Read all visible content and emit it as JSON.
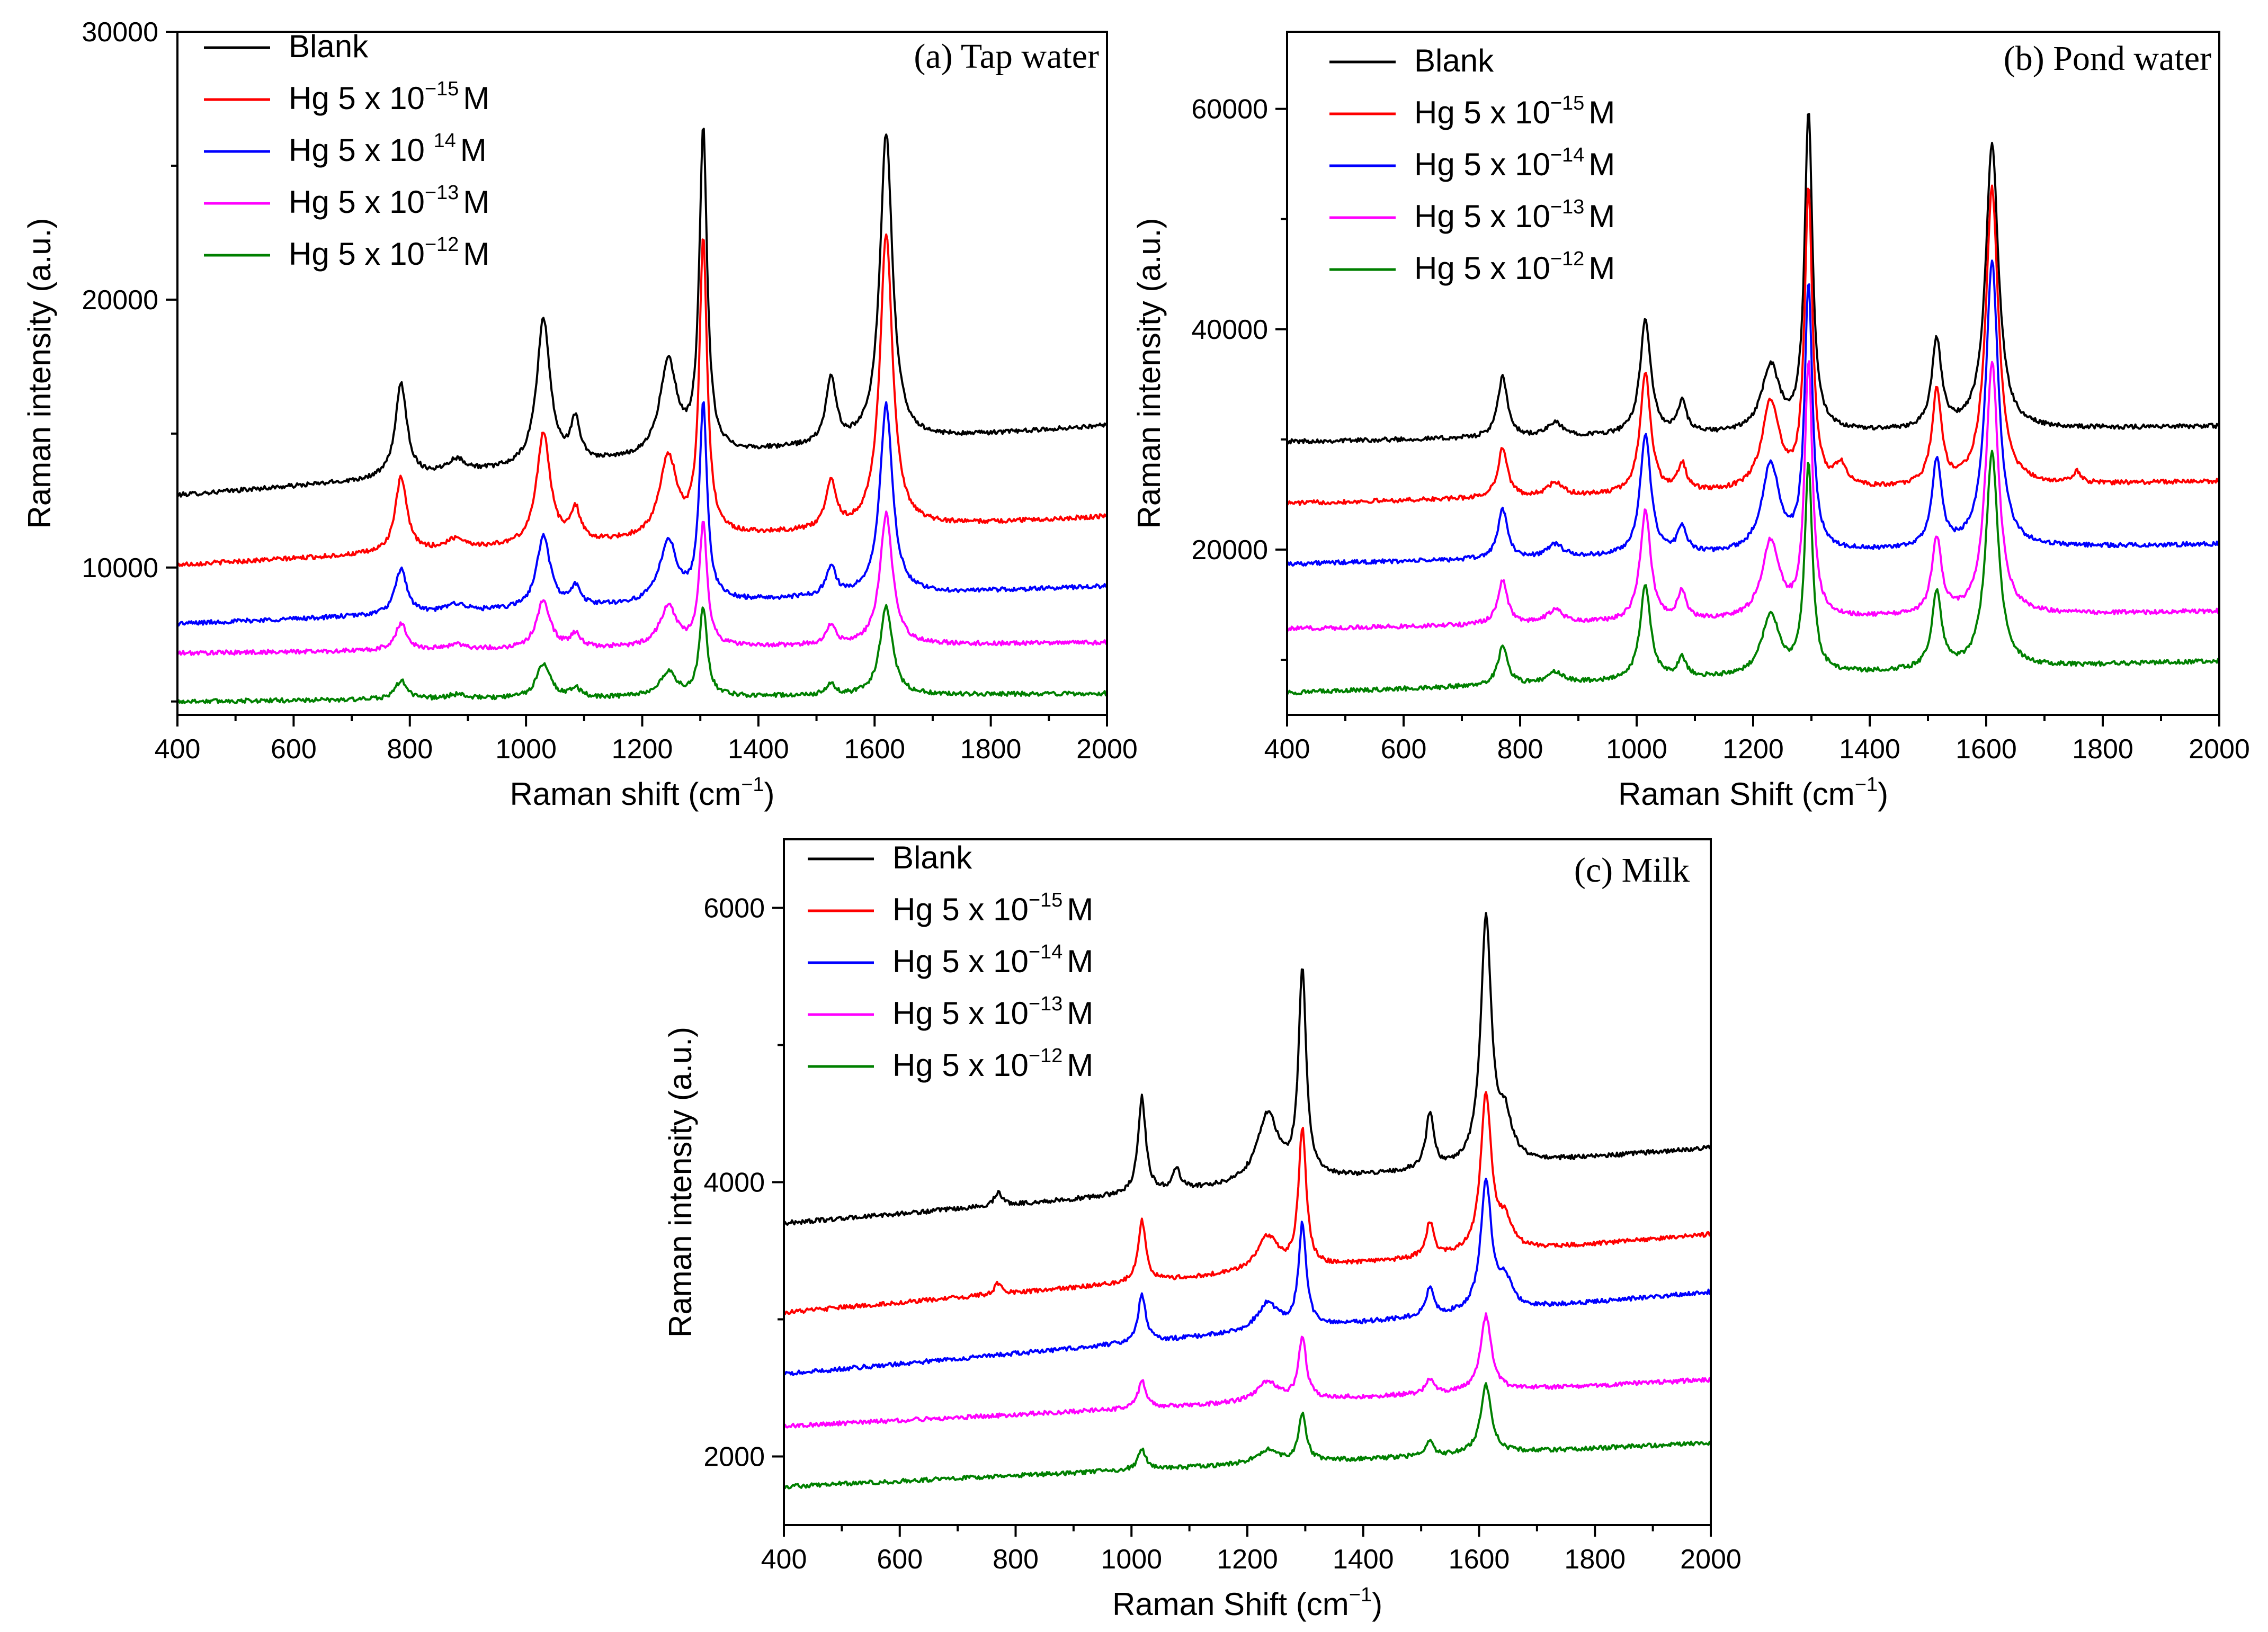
{
  "chart_data": [
    {
      "panel": "a",
      "type": "line",
      "title": "(a) Tap water",
      "xlabel": "Raman shift (cm",
      "xlabel_sup": "−1",
      "xlabel_end": ")",
      "ylabel": "Raman intensity (a.u.)",
      "xlim": [
        400,
        2000
      ],
      "ylim": [
        4500,
        30000
      ],
      "xticks": [
        400,
        600,
        800,
        1000,
        1200,
        1400,
        1600,
        1800,
        2000
      ],
      "yticks": [
        10000,
        20000,
        30000
      ],
      "series": [
        {
          "name": "Blank",
          "base": "Blank",
          "sup": "",
          "tail": "",
          "color": "#000000",
          "base_start": 12700,
          "base_end": 15300,
          "peaks": [
            [
              785,
              3500,
              12
            ],
            [
              880,
              500,
              20
            ],
            [
              1030,
              5500,
              14
            ],
            [
              1085,
              1500,
              10
            ],
            [
              1245,
              3500,
              18
            ],
            [
              1305,
              12000,
              8
            ],
            [
              1525,
              2500,
              10
            ],
            [
              1620,
              11500,
              13
            ]
          ]
        },
        {
          "name": "Hg 5 x 10−15 M",
          "base": "Hg 5 x 10",
          "sup": "−15",
          "tail": "M",
          "color": "#ff0000",
          "base_start": 10100,
          "base_end": 11900,
          "peaks": [
            [
              785,
              2800,
              12
            ],
            [
              880,
              400,
              20
            ],
            [
              1030,
              4200,
              14
            ],
            [
              1085,
              1200,
              10
            ],
            [
              1245,
              3000,
              18
            ],
            [
              1305,
              11000,
              8
            ],
            [
              1525,
              1800,
              10
            ],
            [
              1620,
              11000,
              13
            ]
          ]
        },
        {
          "name": "Hg 5 x 10 14 M",
          "base": "Hg 5 x 10 ",
          "sup": "14",
          "tail": "M",
          "color": "#0000ff",
          "base_start": 7900,
          "base_end": 9300,
          "peaks": [
            [
              785,
              1700,
              12
            ],
            [
              880,
              300,
              20
            ],
            [
              1030,
              2700,
              14
            ],
            [
              1085,
              700,
              10
            ],
            [
              1245,
              2300,
              18
            ],
            [
              1305,
              7300,
              8
            ],
            [
              1525,
              1100,
              10
            ],
            [
              1620,
              7100,
              13
            ]
          ]
        },
        {
          "name": "Hg 5 x 10−13 M",
          "base": "Hg 5 x 10",
          "sup": "−13",
          "tail": "M",
          "color": "#ff00ff",
          "base_start": 6800,
          "base_end": 7200,
          "peaks": [
            [
              785,
              1000,
              12
            ],
            [
              880,
              200,
              20
            ],
            [
              1030,
              1800,
              14
            ],
            [
              1085,
              500,
              10
            ],
            [
              1245,
              1500,
              18
            ],
            [
              1305,
              4600,
              8
            ],
            [
              1525,
              700,
              10
            ],
            [
              1620,
              4900,
              13
            ]
          ]
        },
        {
          "name": "Hg 5 x 10−12 M",
          "base": "Hg 5 x 10",
          "sup": "−12",
          "tail": "M",
          "color": "#008000",
          "base_start": 5000,
          "base_end": 5300,
          "peaks": [
            [
              785,
              700,
              12
            ],
            [
              880,
              150,
              20
            ],
            [
              1030,
              1300,
              14
            ],
            [
              1085,
              350,
              10
            ],
            [
              1245,
              900,
              18
            ],
            [
              1305,
              3300,
              8
            ],
            [
              1525,
              400,
              10
            ],
            [
              1620,
              3300,
              13
            ]
          ]
        }
      ]
    },
    {
      "panel": "b",
      "type": "line",
      "title": "(b) Pond water",
      "xlabel": "Raman Shift (cm",
      "xlabel_sup": "−1",
      "xlabel_end": ")",
      "ylabel": "Raman intensity (a.u.)",
      "xlim": [
        400,
        2000
      ],
      "ylim": [
        5000,
        67000
      ],
      "xticks": [
        400,
        600,
        800,
        1000,
        1200,
        1400,
        1600,
        1800,
        2000
      ],
      "yticks": [
        20000,
        40000,
        60000
      ],
      "series": [
        {
          "name": "Blank",
          "base": "Blank",
          "sup": "",
          "tail": "",
          "color": "#000000",
          "base_start": 29800,
          "base_end": 31200,
          "peaks": [
            [
              770,
              5500,
              10
            ],
            [
              860,
              1200,
              16
            ],
            [
              1015,
              10500,
              11
            ],
            [
              1078,
              2800,
              9
            ],
            [
              1230,
              6000,
              18
            ],
            [
              1295,
              29000,
              8
            ],
            [
              1515,
              8000,
              10
            ],
            [
              1610,
              26000,
              13
            ]
          ]
        },
        {
          "name": "Hg 5 x 10−15 M",
          "base": "Hg 5 x 10",
          "sup": "−15",
          "tail": "M",
          "color": "#ff0000",
          "base_start": 24200,
          "base_end": 26200,
          "peaks": [
            [
              770,
              4500,
              10
            ],
            [
              860,
              1200,
              16
            ],
            [
              1015,
              11000,
              11
            ],
            [
              1078,
              2500,
              9
            ],
            [
              1230,
              8000,
              18
            ],
            [
              1295,
              27000,
              8
            ],
            [
              1350,
              2000,
              12
            ],
            [
              1515,
              8500,
              10
            ],
            [
              1610,
              27000,
              13
            ],
            [
              1755,
              1000,
              8
            ]
          ]
        },
        {
          "name": "Hg 5 x 10−14 M",
          "base": "Hg 5 x 10",
          "sup": "−14",
          "tail": "M",
          "color": "#0000ff",
          "base_start": 18700,
          "base_end": 20500,
          "peaks": [
            [
              770,
              4500,
              10
            ],
            [
              860,
              1200,
              16
            ],
            [
              1015,
              11000,
              11
            ],
            [
              1078,
              2500,
              9
            ],
            [
              1230,
              8000,
              18
            ],
            [
              1295,
              24000,
              8
            ],
            [
              1515,
              8000,
              10
            ],
            [
              1610,
              26000,
              13
            ]
          ]
        },
        {
          "name": "Hg 5 x 10−13 M",
          "base": "Hg 5 x 10",
          "sup": "−13",
          "tail": "M",
          "color": "#ff00ff",
          "base_start": 12800,
          "base_end": 14400,
          "peaks": [
            [
              770,
              4000,
              10
            ],
            [
              860,
              1200,
              16
            ],
            [
              1015,
              10000,
              11
            ],
            [
              1078,
              2500,
              9
            ],
            [
              1230,
              7000,
              18
            ],
            [
              1295,
              23000,
              8
            ],
            [
              1515,
              7000,
              10
            ],
            [
              1610,
              23000,
              13
            ]
          ]
        },
        {
          "name": "Hg 5 x 10−12 M",
          "base": "Hg 5 x 10",
          "sup": "−12",
          "tail": "M",
          "color": "#008000",
          "base_start": 7000,
          "base_end": 9900,
          "peaks": [
            [
              770,
              3500,
              10
            ],
            [
              860,
              1000,
              16
            ],
            [
              1015,
              8500,
              11
            ],
            [
              1078,
              1800,
              9
            ],
            [
              1230,
              5500,
              18
            ],
            [
              1295,
              19000,
              8
            ],
            [
              1515,
              7000,
              10
            ],
            [
              1610,
              19500,
              13
            ]
          ]
        }
      ]
    },
    {
      "panel": "c",
      "type": "line",
      "title": "(c) Milk",
      "xlabel": "Raman Shift (cm",
      "xlabel_sup": "−1",
      "xlabel_end": ")",
      "ylabel": "Raman intensity (a.u.)",
      "xlim": [
        400,
        2000
      ],
      "ylim": [
        1500,
        6500
      ],
      "xticks": [
        400,
        600,
        800,
        1000,
        1200,
        1400,
        1600,
        1800,
        2000
      ],
      "yticks": [
        2000,
        4000,
        6000
      ],
      "series": [
        {
          "name": "Blank",
          "base": "Blank",
          "sup": "",
          "tail": "",
          "color": "#000000",
          "base_start": 3700,
          "base_end": 4250,
          "peaks": [
            [
              770,
              100,
              8
            ],
            [
              1018,
              700,
              8
            ],
            [
              1078,
              150,
              8
            ],
            [
              1235,
              500,
              22
            ],
            [
              1295,
              1500,
              8
            ],
            [
              1515,
              400,
              8
            ],
            [
              1612,
              1800,
              11
            ],
            [
              1645,
              300,
              14
            ]
          ]
        },
        {
          "name": "Hg 5 x 10−15 M",
          "base": "Hg 5 x 10",
          "sup": "−15",
          "tail": "M",
          "color": "#ff0000",
          "base_start": 3050,
          "base_end": 3620,
          "peaks": [
            [
              770,
              80,
              8
            ],
            [
              1018,
              450,
              8
            ],
            [
              1235,
              250,
              22
            ],
            [
              1295,
              1000,
              8
            ],
            [
              1515,
              250,
              8
            ],
            [
              1612,
              1150,
              11
            ],
            [
              1645,
              200,
              14
            ]
          ]
        },
        {
          "name": "Hg 5 x 10−14 M",
          "base": "Hg 5 x 10",
          "sup": "−14",
          "tail": "M",
          "color": "#0000ff",
          "base_start": 2600,
          "base_end": 3200,
          "peaks": [
            [
              1018,
              350,
              8
            ],
            [
              1235,
              200,
              22
            ],
            [
              1295,
              750,
              8
            ],
            [
              1515,
              200,
              8
            ],
            [
              1612,
              950,
              11
            ],
            [
              1645,
              200,
              14
            ]
          ]
        },
        {
          "name": "Hg 5 x 10−13 M",
          "base": "Hg 5 x 10",
          "sup": "−13",
          "tail": "M",
          "color": "#ff00ff",
          "base_start": 2220,
          "base_end": 2560,
          "peaks": [
            [
              1018,
              200,
              8
            ],
            [
              1235,
              150,
              22
            ],
            [
              1295,
              450,
              8
            ],
            [
              1515,
              100,
              8
            ],
            [
              1612,
              550,
              11
            ]
          ]
        },
        {
          "name": "Hg 5 x 10−12 M",
          "base": "Hg 5 x 10",
          "sup": "−12",
          "tail": "M",
          "color": "#008000",
          "base_start": 1780,
          "base_end": 2100,
          "peaks": [
            [
              1018,
              150,
              8
            ],
            [
              1235,
              100,
              22
            ],
            [
              1295,
              350,
              8
            ],
            [
              1515,
              100,
              8
            ],
            [
              1612,
              500,
              11
            ]
          ]
        }
      ]
    }
  ]
}
